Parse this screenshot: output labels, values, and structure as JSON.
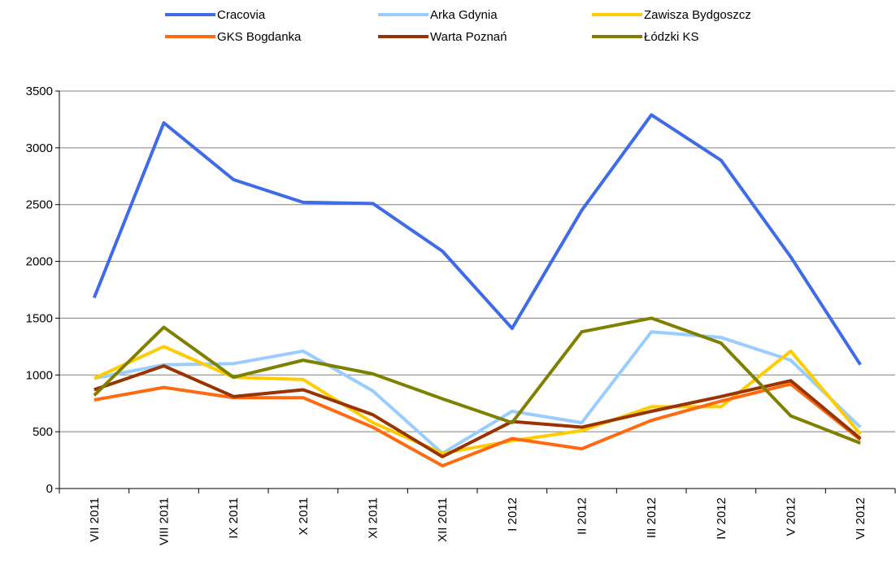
{
  "chart_data": {
    "type": "line",
    "categories": [
      "VII 2011",
      "VIII 2011",
      "IX 2011",
      "X 2011",
      "XI 2011",
      "XII 2011",
      "I 2012",
      "II 2012",
      "III 2012",
      "IV 2012",
      "V 2012",
      "VI 2012"
    ],
    "series": [
      {
        "name": "Cracovia",
        "color": "#3f6ae8",
        "values": [
          1680,
          3220,
          2720,
          2520,
          2510,
          2090,
          1410,
          2450,
          3290,
          2890,
          2040,
          1090
        ]
      },
      {
        "name": "Arka Gdynia",
        "color": "#99ccff",
        "values": [
          970,
          1090,
          1100,
          1210,
          860,
          310,
          680,
          580,
          1380,
          1330,
          1130,
          540
        ]
      },
      {
        "name": "Zawisza Bydgoszcz",
        "color": "#ffcc00",
        "values": [
          970,
          1250,
          980,
          960,
          580,
          310,
          420,
          510,
          720,
          720,
          1210,
          480
        ]
      },
      {
        "name": "GKS Bogdanka",
        "color": "#ff6a10",
        "values": [
          780,
          890,
          800,
          800,
          540,
          200,
          440,
          350,
          600,
          770,
          920,
          430
        ]
      },
      {
        "name": "Warta Poznań",
        "color": "#993300",
        "values": [
          870,
          1080,
          810,
          870,
          650,
          280,
          590,
          540,
          680,
          810,
          950,
          440
        ]
      },
      {
        "name": "Łódzki KS",
        "color": "#808000",
        "values": [
          820,
          1420,
          980,
          1130,
          1010,
          790,
          580,
          1380,
          1500,
          1280,
          640,
          400
        ]
      }
    ],
    "ylim": [
      0,
      3500
    ],
    "yticks": [
      0,
      500,
      1000,
      1500,
      2000,
      2500,
      3000,
      3500
    ],
    "grid": true,
    "legend": "top"
  }
}
